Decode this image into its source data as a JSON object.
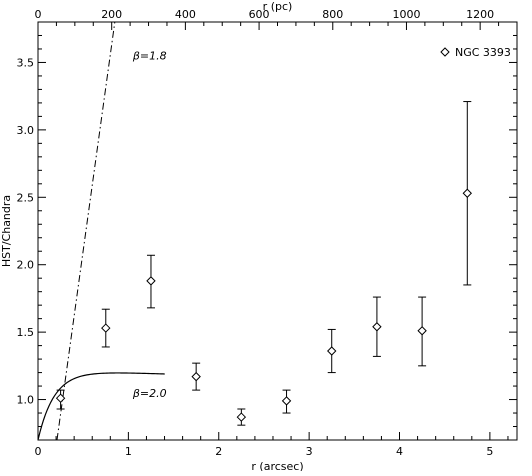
{
  "chart_data": {
    "type": "scatter",
    "title": "",
    "xlabel": "r (arcsec)",
    "ylabel": "HST/Chandra",
    "top_xlabel": "r (pc)",
    "xlim": [
      0,
      5.3
    ],
    "ylim": [
      0.7,
      3.8
    ],
    "top_xlim": [
      0,
      1300
    ],
    "x_ticks": [
      0,
      1,
      2,
      3,
      4,
      5
    ],
    "x_tick_labels": [
      "0",
      "1",
      "2",
      "3",
      "4",
      "5"
    ],
    "y_ticks": [
      1.0,
      1.5,
      2.0,
      2.5,
      3.0,
      3.5
    ],
    "y_tick_labels": [
      "1.0",
      "1.5",
      "2.0",
      "2.5",
      "3.0",
      "3.5"
    ],
    "top_ticks": [
      0,
      200,
      400,
      600,
      800,
      1000,
      1200
    ],
    "top_tick_labels": [
      "0",
      "200",
      "400",
      "600",
      "800",
      "1000",
      "1200"
    ],
    "grid": false,
    "legend": {
      "position": "top-right",
      "entries": [
        {
          "label": "NGC 3393",
          "marker": "diamond"
        }
      ]
    },
    "series": [
      {
        "name": "NGC 3393",
        "marker": "diamond",
        "x": [
          0.25,
          0.75,
          1.25,
          1.75,
          2.25,
          2.75,
          3.25,
          3.75,
          4.25,
          4.75
        ],
        "y": [
          1.01,
          1.53,
          1.88,
          1.17,
          0.87,
          0.99,
          1.36,
          1.54,
          1.51,
          2.53
        ],
        "y_low": [
          0.93,
          1.39,
          1.68,
          1.07,
          0.81,
          0.9,
          1.2,
          1.32,
          1.25,
          1.85
        ],
        "y_high": [
          1.07,
          1.67,
          2.07,
          1.27,
          0.93,
          1.07,
          1.52,
          1.76,
          1.76,
          3.21
        ]
      }
    ],
    "model_curves": [
      {
        "label": "β=1.8",
        "style": "dash-dot",
        "annotation_position": [
          1.05,
          3.55
        ]
      },
      {
        "label": "β=2.0",
        "style": "solid",
        "annotation_position": [
          1.05,
          1.05
        ]
      }
    ]
  }
}
